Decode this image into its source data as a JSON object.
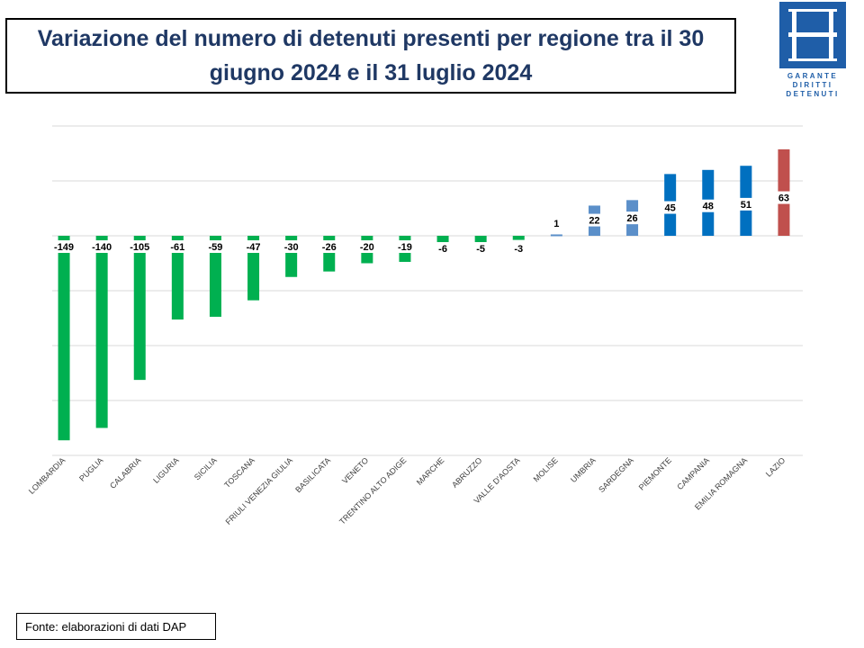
{
  "header": {
    "title": "Variazione del numero di detenuti presenti per regione tra il 30 giugno 2024 e il 31 luglio 2024"
  },
  "logo": {
    "lines": [
      "GARANTE",
      "DIRITTI",
      "DETENUTI"
    ],
    "color": "#1f5ea8"
  },
  "footer": {
    "source": "Fonte: elaborazioni di dati DAP"
  },
  "colors": {
    "negative": "#00b050",
    "positive_light": "#5b8fc9",
    "positive_dark": "#0070c0",
    "highlight": "#c0504d",
    "grid": "#d9d9d9"
  },
  "chart_data": {
    "type": "bar",
    "title": "Variazione del numero di detenuti presenti per regione tra il 30 giugno 2024 e il 31 luglio 2024",
    "categories": [
      "LOMBARDIA",
      "PUGLIA",
      "CALABRIA",
      "LIGURIA",
      "SICILIA",
      "TOSCANA",
      "FRIULI VENEZIA GIULIA",
      "BASILICATA",
      "VENETO",
      "TRENTINO ALTO ADIGE",
      "MARCHE",
      "ABRUZZO",
      "VALLE D'AOSTA",
      "MOLISE",
      "UMBRIA",
      "SARDEGNA",
      "PIEMONTE",
      "CAMPANIA",
      "EMILIA ROMAGNA",
      "LAZIO"
    ],
    "values": [
      -149,
      -140,
      -105,
      -61,
      -59,
      -47,
      -30,
      -26,
      -20,
      -19,
      -6,
      -5,
      -3,
      1,
      22,
      26,
      45,
      48,
      51,
      63
    ],
    "bar_colors": [
      "#00b050",
      "#00b050",
      "#00b050",
      "#00b050",
      "#00b050",
      "#00b050",
      "#00b050",
      "#00b050",
      "#00b050",
      "#00b050",
      "#00b050",
      "#00b050",
      "#00b050",
      "#5b8fc9",
      "#5b8fc9",
      "#5b8fc9",
      "#0070c0",
      "#0070c0",
      "#0070c0",
      "#c0504d"
    ],
    "ylim": [
      -160,
      80
    ],
    "grid_step": 40,
    "grid": true,
    "data_labels": true,
    "xlabel": "",
    "ylabel": ""
  }
}
